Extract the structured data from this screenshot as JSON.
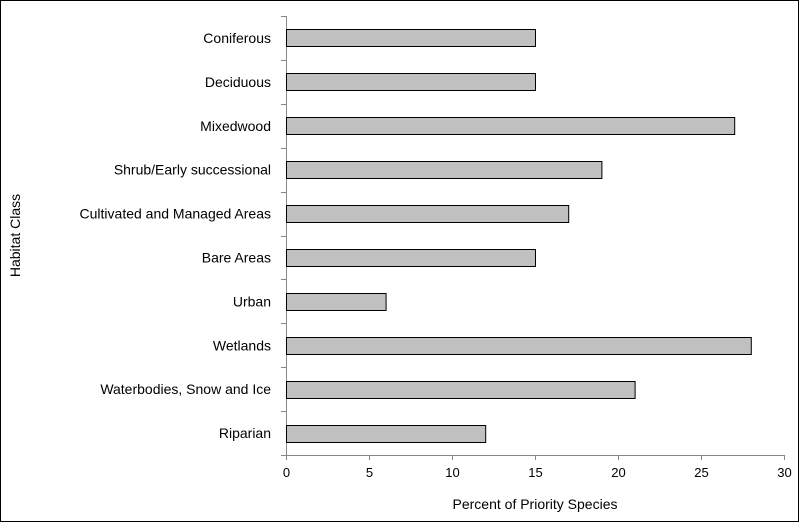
{
  "chart_data": {
    "type": "bar",
    "orientation": "horizontal",
    "categories": [
      "Coniferous",
      "Deciduous",
      "Mixedwood",
      "Shrub/Early successional",
      "Cultivated and Managed Areas",
      "Bare Areas",
      "Urban",
      "Wetlands",
      "Waterbodies, Snow and Ice",
      "Riparian"
    ],
    "values": [
      15,
      15,
      27,
      19,
      17,
      15,
      6,
      28,
      21,
      12
    ],
    "xlabel": "Percent of Priority Species",
    "ylabel": "Habitat Class",
    "xlim": [
      0,
      30
    ],
    "xticks": [
      0,
      5,
      10,
      15,
      20,
      25,
      30
    ],
    "grid": false,
    "bar_color": "#c0c0c0",
    "bar_edge_color": "#000000"
  }
}
